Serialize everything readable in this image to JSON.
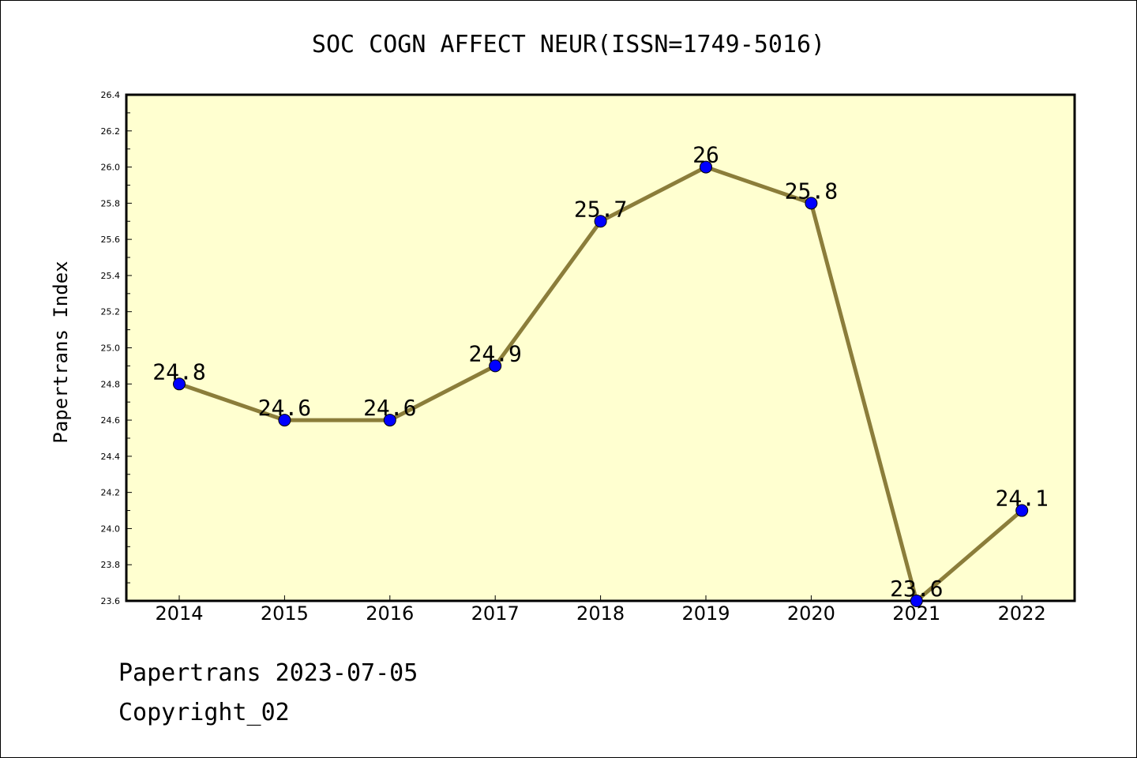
{
  "chart_data": {
    "type": "line",
    "title": "SOC COGN AFFECT NEUR(ISSN=1749-5016)",
    "xlabel": "",
    "ylabel": "Papertrans Index",
    "categories": [
      "2014",
      "2015",
      "2016",
      "2017",
      "2018",
      "2019",
      "2020",
      "2021",
      "2022"
    ],
    "series": [
      {
        "values": [
          24.8,
          24.6,
          24.6,
          24.9,
          25.7,
          26.0,
          25.8,
          23.6,
          24.1
        ],
        "labels": [
          "24.8",
          "24.6",
          "24.6",
          "24.9",
          "25.7",
          "26",
          "25.8",
          "23.6",
          "24.1"
        ]
      }
    ],
    "ylim": [
      23.6,
      26.4
    ],
    "yticks": [
      "23.6",
      "23.8",
      "24.0",
      "24.2",
      "24.4",
      "24.6",
      "24.8",
      "25.0",
      "25.2",
      "25.4",
      "25.6",
      "25.8",
      "26.0",
      "26.2",
      "26.4"
    ],
    "grid": false,
    "colors": {
      "plot_background": "#ffffd0",
      "line": "#8b7d3a",
      "marker": "#0000ff"
    }
  },
  "footer": {
    "line1": "Papertrans 2023-07-05",
    "line2": "Copyright_02"
  }
}
